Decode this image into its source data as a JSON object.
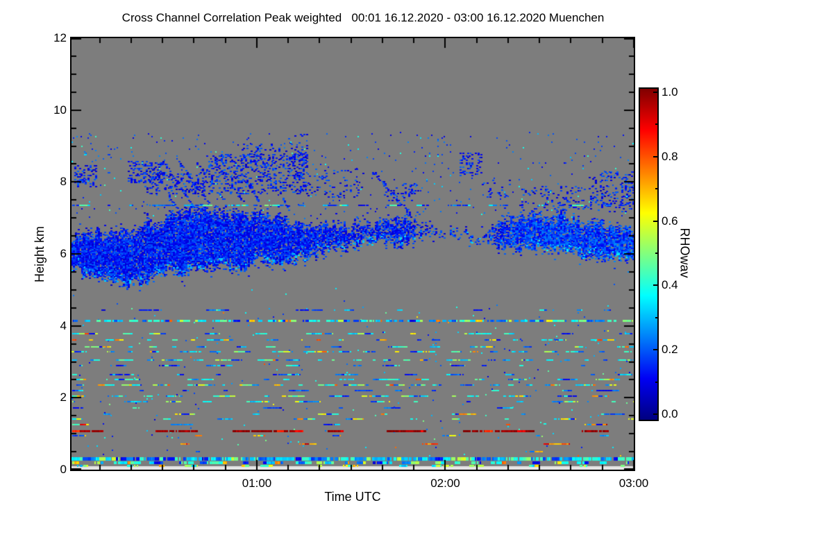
{
  "window": {
    "background": "#ffffff"
  },
  "chart_data": {
    "type": "heatmap",
    "title": "Cross Channel Correlation Peak weighted   00:01 16.12.2020 - 03:00 16.12.2020 Muenchen",
    "xlabel": "Time UTC",
    "ylabel": "Height km",
    "x_start": "00:01",
    "x_end": "03:00",
    "x_ticks": [
      {
        "label": "01:00",
        "time": "01:00"
      },
      {
        "label": "02:00",
        "time": "02:00"
      },
      {
        "label": "03:00",
        "time": "03:00"
      }
    ],
    "x_minor_step_min": 10,
    "ylim": [
      0,
      12
    ],
    "y_ticks": [
      {
        "label": "0",
        "value": 0
      },
      {
        "label": "2",
        "value": 2
      },
      {
        "label": "4",
        "value": 4
      },
      {
        "label": "6",
        "value": 6
      },
      {
        "label": "8",
        "value": 8
      },
      {
        "label": "10",
        "value": 10
      },
      {
        "label": "12",
        "value": 12
      }
    ],
    "y_minor_step": 0.5,
    "grid": false,
    "no_data_color": "#7d7d7d",
    "near_ground_blank_color": "#e4e4e4",
    "colorbar": {
      "label": "RHOwav",
      "min": 0,
      "max": 1,
      "ticks": [
        {
          "label": "1.0",
          "value": 1.0
        },
        {
          "label": "0.8",
          "value": 0.8
        },
        {
          "label": "0.6",
          "value": 0.6
        },
        {
          "label": "0.4",
          "value": 0.4
        },
        {
          "label": "0.2",
          "value": 0.2
        },
        {
          "label": "0.0",
          "value": 0.0
        }
      ],
      "minor_tick_values": [
        0.1,
        0.3,
        0.5,
        0.7,
        0.9
      ],
      "colormap_stops": [
        [
          0.0,
          "#000080"
        ],
        [
          0.125,
          "#0000f4"
        ],
        [
          0.375,
          "#00ffff"
        ],
        [
          0.625,
          "#ffff00"
        ],
        [
          0.875,
          "#ff0000"
        ],
        [
          1.0,
          "#800000"
        ]
      ]
    },
    "render_seed": 1337,
    "features": {
      "comment": "RHOwav cross-channel correlation: mid-level ice cloud 5-7.5 km (rho~0.1-0.2, blue), fall streaks to 8.7 km, dashed layer line at 7.35 km, many thin aerosol/noise streak lines below 4.5 km (rho~0.3-0.5 cyan), hard-target dark-red line at 1.08 km (rho~1.0), continuous mixed band at 0.31 km, blank strip below 0.1 km",
      "cloud_keypoints": [
        [
          0.0,
          5.55,
          6.65,
          0.95
        ],
        [
          0.03,
          5.35,
          6.75,
          0.95
        ],
        [
          0.06,
          5.2,
          6.8,
          0.92
        ],
        [
          0.1,
          5.0,
          6.85,
          0.88
        ],
        [
          0.13,
          5.1,
          7.0,
          0.88
        ],
        [
          0.16,
          5.35,
          7.2,
          0.9
        ],
        [
          0.19,
          5.3,
          7.4,
          0.9
        ],
        [
          0.22,
          5.6,
          7.35,
          0.92
        ],
        [
          0.26,
          5.5,
          7.35,
          0.9
        ],
        [
          0.3,
          5.45,
          7.3,
          0.9
        ],
        [
          0.34,
          5.7,
          7.3,
          0.9
        ],
        [
          0.38,
          5.6,
          7.1,
          0.88
        ],
        [
          0.42,
          5.85,
          7.0,
          0.85
        ],
        [
          0.46,
          6.0,
          6.9,
          0.8
        ],
        [
          0.5,
          6.1,
          7.0,
          0.72
        ],
        [
          0.54,
          6.2,
          7.1,
          0.7
        ],
        [
          0.58,
          6.2,
          7.15,
          0.72
        ],
        [
          0.62,
          6.35,
          6.95,
          0.5
        ],
        [
          0.66,
          6.45,
          6.8,
          0.25
        ],
        [
          0.7,
          6.35,
          6.75,
          0.45
        ],
        [
          0.73,
          6.3,
          6.7,
          0.4
        ],
        [
          0.76,
          6.15,
          7.05,
          0.7
        ],
        [
          0.8,
          6.0,
          7.2,
          0.88
        ],
        [
          0.84,
          5.95,
          7.25,
          0.9
        ],
        [
          0.88,
          5.9,
          7.15,
          0.9
        ],
        [
          0.92,
          5.85,
          7.05,
          0.9
        ],
        [
          0.96,
          5.8,
          6.95,
          0.9
        ],
        [
          1.0,
          5.7,
          6.9,
          0.9
        ]
      ],
      "fall_streaks": [
        [
          0.145,
          8.35,
          0.19,
          7.2,
          4,
          0.6
        ],
        [
          0.165,
          8.5,
          0.215,
          7.35,
          4,
          0.55
        ],
        [
          0.19,
          8.55,
          0.245,
          7.4,
          5,
          0.6
        ],
        [
          0.22,
          8.6,
          0.27,
          7.5,
          4,
          0.55
        ],
        [
          0.255,
          8.55,
          0.305,
          7.45,
          4,
          0.5
        ],
        [
          0.29,
          8.65,
          0.335,
          7.35,
          4,
          0.5
        ],
        [
          0.335,
          8.7,
          0.385,
          7.25,
          5,
          0.55
        ],
        [
          0.535,
          8.3,
          0.6,
          7.15,
          6,
          0.55
        ]
      ],
      "upper_patches": [
        [
          0.005,
          0.045,
          7.9,
          8.5,
          0.3
        ],
        [
          0.1,
          0.165,
          8.0,
          8.6,
          0.28
        ],
        [
          0.13,
          0.24,
          7.7,
          8.3,
          0.22
        ],
        [
          0.24,
          0.42,
          7.7,
          8.8,
          0.25
        ],
        [
          0.3,
          0.42,
          8.6,
          9.1,
          0.12
        ],
        [
          0.38,
          0.425,
          8.8,
          9.35,
          0.1
        ],
        [
          0.42,
          0.52,
          7.6,
          8.4,
          0.1
        ],
        [
          0.55,
          0.62,
          7.5,
          8.0,
          0.12
        ],
        [
          0.69,
          0.73,
          8.2,
          8.85,
          0.22
        ],
        [
          0.73,
          0.78,
          7.6,
          8.1,
          0.1
        ],
        [
          0.8,
          1.0,
          7.2,
          7.9,
          0.12
        ],
        [
          0.92,
          1.0,
          7.4,
          8.3,
          0.15
        ]
      ],
      "sparse_fields": [
        [
          0.0,
          1.0,
          7.0,
          9.4,
          0.015,
          "blueSparse"
        ],
        [
          0.0,
          0.7,
          8.5,
          9.3,
          0.01,
          "blueSparse"
        ],
        [
          0.0,
          1.0,
          0.4,
          4.6,
          0.006,
          "noiseDots"
        ],
        [
          0.0,
          1.0,
          4.6,
          5.3,
          0.0015,
          "blueSparse"
        ]
      ],
      "lines": [
        {
          "km": 7.35,
          "th": 2,
          "cov": 0.5,
          "pal": "blueLine"
        },
        {
          "km": 4.43,
          "th": 2,
          "cov": 0.22,
          "pal": "blueSparse"
        },
        {
          "km": 4.15,
          "th": 3,
          "cov": 0.7,
          "pal": "cyanMix"
        },
        {
          "km": 3.78,
          "th": 2,
          "cov": 0.28,
          "pal": "cyanMix"
        },
        {
          "km": 3.6,
          "th": 2,
          "cov": 0.3,
          "pal": "cyanYellow"
        },
        {
          "km": 3.42,
          "th": 2,
          "cov": 0.3,
          "pal": "cyanMix"
        },
        {
          "km": 3.28,
          "th": 2,
          "cov": 0.45,
          "pal": "cyanMix"
        },
        {
          "km": 3.05,
          "th": 2,
          "cov": 0.5,
          "pal": "cyanMix"
        },
        {
          "km": 2.9,
          "th": 2,
          "cov": 0.25,
          "pal": "blueSparse"
        },
        {
          "km": 2.65,
          "th": 2,
          "cov": 0.18,
          "pal": "blueSparse"
        },
        {
          "km": 2.5,
          "th": 2,
          "cov": 0.28,
          "pal": "cyanMix"
        },
        {
          "km": 2.35,
          "th": 2,
          "cov": 0.5,
          "pal": "cyanMix"
        },
        {
          "km": 2.2,
          "th": 2,
          "cov": 0.22,
          "pal": "blueSparse"
        },
        {
          "km": 2.05,
          "th": 2,
          "cov": 0.32,
          "pal": "cyanMix"
        },
        {
          "km": 1.9,
          "th": 2,
          "cov": 0.28,
          "pal": "cyanMix"
        },
        {
          "km": 1.72,
          "th": 2,
          "cov": 0.12,
          "pal": "blueSparse"
        },
        {
          "km": 1.55,
          "th": 2,
          "cov": 0.2,
          "pal": "cyanYellow"
        },
        {
          "km": 1.4,
          "th": 2,
          "cov": 0.18,
          "pal": "cyanYellow"
        },
        {
          "km": 1.25,
          "th": 2,
          "cov": 0.1,
          "pal": "mixedBright"
        },
        {
          "km": 1.08,
          "th": 3,
          "cov": 0.5,
          "pal": "darkRed",
          "dash": [
            15,
            110
          ]
        },
        {
          "km": 0.95,
          "th": 2,
          "cov": 0.15,
          "pal": "cyanYellow"
        },
        {
          "km": 0.72,
          "th": 2,
          "cov": 0.09,
          "pal": "orangeRed"
        },
        {
          "km": 0.5,
          "th": 2,
          "cov": 0.05,
          "pal": "mixedBright"
        },
        {
          "km": 0.31,
          "th": 5,
          "cov": 0.99,
          "pal": "bandMix"
        },
        {
          "km": 0.19,
          "th": 4,
          "cov": 0.5,
          "pal": "bandMix2"
        },
        {
          "km": 0.11,
          "th": 3,
          "cov": 0.3,
          "pal": "greenMix"
        }
      ],
      "palettes": {
        "blueLine": [
          [
            0.65,
            0.1,
            0.28
          ],
          [
            0.35,
            0.3,
            0.5
          ]
        ],
        "blueSparse": [
          [
            0.8,
            0.1,
            0.26
          ],
          [
            0.2,
            0.3,
            0.45
          ]
        ],
        "noiseDots": [
          [
            0.6,
            0.1,
            0.3
          ],
          [
            0.35,
            0.3,
            0.5
          ],
          [
            0.05,
            0.5,
            0.8
          ]
        ],
        "cyanMix": [
          [
            0.5,
            0.3,
            0.47
          ],
          [
            0.3,
            0.12,
            0.28
          ],
          [
            0.12,
            0.47,
            0.6
          ],
          [
            0.08,
            0.6,
            0.8
          ]
        ],
        "cyanYellow": [
          [
            0.35,
            0.3,
            0.45
          ],
          [
            0.25,
            0.12,
            0.28
          ],
          [
            0.2,
            0.5,
            0.68
          ],
          [
            0.2,
            0.62,
            0.82
          ]
        ],
        "mixedBright": [
          [
            0.4,
            0.12,
            0.3
          ],
          [
            0.3,
            0.3,
            0.5
          ],
          [
            0.3,
            0.6,
            0.95
          ]
        ],
        "darkRed": [
          [
            0.88,
            0.95,
            1.0
          ],
          [
            0.12,
            0.8,
            0.92
          ]
        ],
        "orangeRed": [
          [
            0.6,
            0.62,
            0.8
          ],
          [
            0.4,
            0.8,
            0.97
          ]
        ],
        "bandMix": [
          [
            0.55,
            0.3,
            0.46
          ],
          [
            0.35,
            0.1,
            0.28
          ],
          [
            0.1,
            0.46,
            0.62
          ]
        ],
        "bandMix2": [
          [
            0.4,
            0.3,
            0.45
          ],
          [
            0.35,
            0.1,
            0.28
          ],
          [
            0.15,
            0.45,
            0.6
          ],
          [
            0.1,
            0.6,
            0.8
          ]
        ],
        "greenMix": [
          [
            0.45,
            0.4,
            0.58
          ],
          [
            0.3,
            0.3,
            0.45
          ],
          [
            0.25,
            0.55,
            0.72
          ]
        ]
      }
    }
  }
}
